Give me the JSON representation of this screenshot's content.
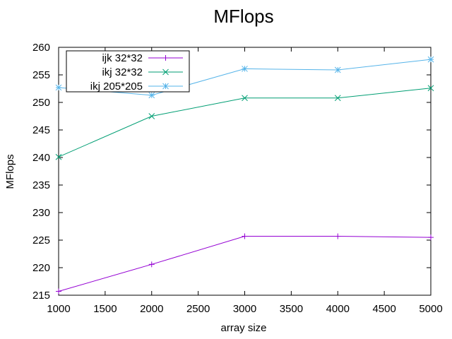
{
  "chart_data": {
    "type": "line",
    "title": "MFlops",
    "xlabel": "array size",
    "ylabel": "MFlops",
    "xlim": [
      1000,
      5000
    ],
    "ylim": [
      215,
      260
    ],
    "xticks": [
      1000,
      1500,
      2000,
      2500,
      3000,
      3500,
      4000,
      4500,
      5000
    ],
    "yticks": [
      215,
      220,
      225,
      230,
      235,
      240,
      245,
      250,
      255,
      260
    ],
    "grid": false,
    "legend_position": "top-left",
    "series": [
      {
        "name": "ijk 32*32",
        "color": "#9400d3",
        "marker": "plus",
        "x": [
          1000,
          2000,
          3000,
          4000,
          5000
        ],
        "y": [
          215.7,
          220.6,
          225.7,
          225.7,
          225.5
        ]
      },
      {
        "name": "ikj 32*32",
        "color": "#009e73",
        "marker": "cross",
        "x": [
          1000,
          2000,
          3000,
          4000,
          5000
        ],
        "y": [
          240.1,
          247.5,
          250.8,
          250.8,
          252.6
        ]
      },
      {
        "name": "ikj 205*205",
        "color": "#56b4e9",
        "marker": "asterisk",
        "x": [
          1000,
          2000,
          3000,
          4000,
          5000
        ],
        "y": [
          252.7,
          251.3,
          256.1,
          255.9,
          257.8
        ]
      }
    ]
  }
}
